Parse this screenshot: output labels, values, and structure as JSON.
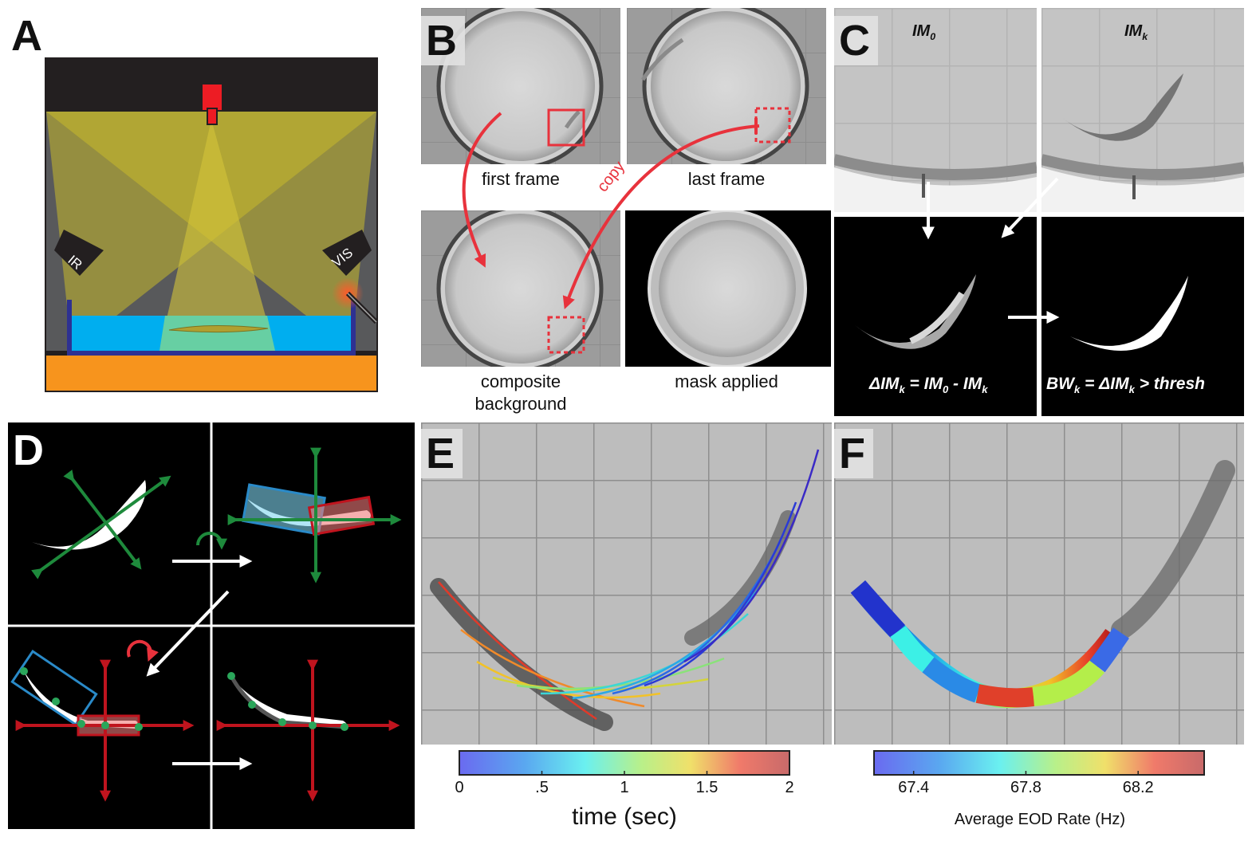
{
  "panels": {
    "a": {
      "label": "A",
      "ir_label": "IR",
      "vis_label": "VIS",
      "colors": {
        "enclosure": "#231f20",
        "wall": "#58595b",
        "camera": "#ed1c24",
        "light": "#c9b92a",
        "water": "#00aeef",
        "tank": "#2e3192",
        "base": "#f7941d"
      }
    },
    "b": {
      "label": "B",
      "first_frame": "first frame",
      "last_frame": "last frame",
      "composite_line1": "composite",
      "composite_line2": "background",
      "mask_applied": "mask applied",
      "copy_label": "copy"
    },
    "c": {
      "label": "C",
      "im0": {
        "main": "IM",
        "sub": "0"
      },
      "imk": {
        "main": "IM",
        "sub": "k"
      },
      "diff_eq": {
        "p1": "ΔIM",
        "s1": "k",
        "p2": " = IM",
        "s2": "0",
        "p3": " - IM",
        "s3": "k"
      },
      "bw_eq": {
        "p1": "BW",
        "s1": "k",
        "p2": " = ΔIM",
        "s2": "k",
        "p3": " > thresh"
      }
    },
    "d": {
      "label": "D"
    },
    "e": {
      "label": "E",
      "colorbar": {
        "ticks": [
          "0",
          ".5",
          "1",
          "1.5",
          "2"
        ],
        "label": "time (sec)"
      }
    },
    "f": {
      "label": "F",
      "colorbar": {
        "ticks": [
          "67.4",
          "67.8",
          "68.2"
        ],
        "label": "Average EOD Rate (Hz)"
      }
    }
  }
}
